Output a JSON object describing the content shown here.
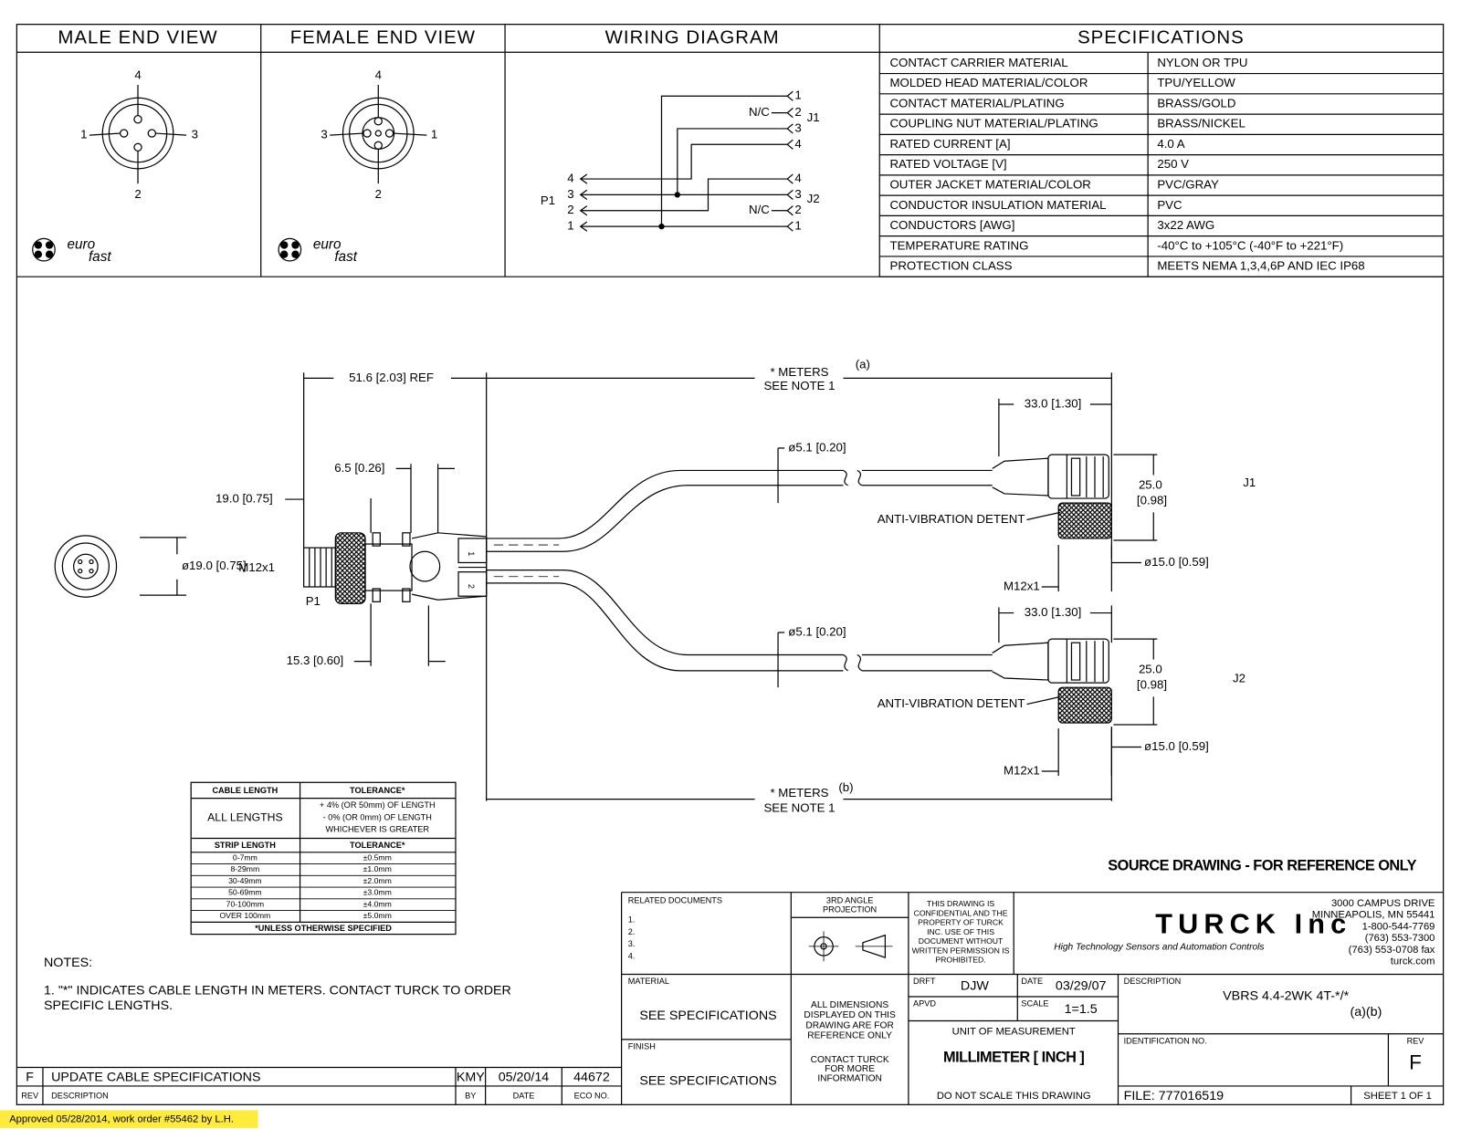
{
  "header": {
    "male_end_view": "MALE END VIEW",
    "female_end_view": "FEMALE END VIEW",
    "wiring_diagram": "WIRING DIAGRAM",
    "specifications": "SPECIFICATIONS"
  },
  "male_view": {
    "pins": [
      "4",
      "1",
      "3",
      "2"
    ],
    "logo": [
      "euro",
      "fast"
    ]
  },
  "female_view": {
    "pins": [
      "4",
      "3",
      "1",
      "2"
    ],
    "logo": [
      "euro",
      "fast"
    ]
  },
  "wiring": {
    "j1_pins": [
      "1",
      "2",
      "3",
      "4"
    ],
    "j1_nc": "N/C",
    "j1": "J1",
    "p1_pins": [
      "4",
      "3",
      "2",
      "1"
    ],
    "p1": "P1",
    "j2_pins": [
      "4",
      "3",
      "2",
      "1"
    ],
    "j2_nc": "N/C",
    "j2": "J2"
  },
  "specifications": [
    [
      "CONTACT CARRIER MATERIAL",
      "NYLON OR TPU"
    ],
    [
      "MOLDED HEAD MATERIAL/COLOR",
      "TPU/YELLOW"
    ],
    [
      "CONTACT MATERIAL/PLATING",
      "BRASS/GOLD"
    ],
    [
      "COUPLING NUT MATERIAL/PLATING",
      "BRASS/NICKEL"
    ],
    [
      "RATED CURRENT [A]",
      "4.0 A"
    ],
    [
      "RATED VOLTAGE [V]",
      "250 V"
    ],
    [
      "OUTER JACKET MATERIAL/COLOR",
      "PVC/GRAY"
    ],
    [
      "CONDUCTOR INSULATION MATERIAL",
      "PVC"
    ],
    [
      "CONDUCTORS [AWG]",
      "3x22 AWG"
    ],
    [
      "TEMPERATURE RATING",
      "-40°C to +105°C (-40°F to +221°F)"
    ],
    [
      "PROTECTION CLASS",
      "MEETS NEMA 1,3,4,6P AND IEC IP68"
    ]
  ],
  "drawing": {
    "labels": [
      "51.6 [2.03] REF",
      "* METERS",
      "(a)",
      "SEE NOTE 1",
      "33.0 [1.30]",
      "6.5 [0.26]",
      "ø5.1 [0.20]",
      "19.0 [0.75]",
      "25.0",
      "[0.98]",
      "J1",
      "ANTI-VIBRATION DETENT",
      "ø19.0 [0.75]",
      "M12x1",
      "ø15.0 [0.59]",
      "P1",
      "M12x1",
      "33.0 [1.30]",
      "ø5.1 [0.20]",
      "15.3 [0.60]",
      "25.0",
      "[0.98]",
      "J2",
      "ANTI-VIBRATION DETENT",
      "ø15.0 [0.59]",
      "M12x1",
      "* METERS",
      "(b)",
      "SEE NOTE 1",
      "1",
      "2"
    ],
    "source_note": "SOURCE DRAWING - FOR REFERENCE ONLY"
  },
  "tolerance_table": {
    "header": [
      "CABLE LENGTH",
      "TOLERANCE*"
    ],
    "all_lengths": "ALL LENGTHS",
    "all_tolerance": [
      "+ 4% (OR 50mm) OF LENGTH",
      "- 0% (OR 0mm) OF LENGTH",
      "WHICHEVER IS GREATER"
    ],
    "strip_header": [
      "STRIP LENGTH",
      "TOLERANCE*"
    ],
    "rows": [
      [
        "0-7mm",
        "±0.5mm"
      ],
      [
        "8-29mm",
        "±1.0mm"
      ],
      [
        "30-49mm",
        "±2.0mm"
      ],
      [
        "50-69mm",
        "±3.0mm"
      ],
      [
        "70-100mm",
        "±4.0mm"
      ],
      [
        "OVER 100mm",
        "±5.0mm"
      ]
    ],
    "footer": "*UNLESS OTHERWISE SPECIFIED"
  },
  "notes": {
    "title": "NOTES:",
    "lines": [
      "1. \"*\" INDICATES CABLE LENGTH IN METERS. CONTACT TURCK TO ORDER",
      "SPECIFIC LENGTHS."
    ]
  },
  "revisions": {
    "header": [
      "REV",
      "DESCRIPTION",
      "BY",
      "DATE",
      "ECO NO."
    ],
    "rows": [
      [
        "F",
        "UPDATE CABLE SPECIFICATIONS",
        "KMY",
        "05/20/14",
        "44672"
      ]
    ]
  },
  "title_block": {
    "related_documents": "RELATED DOCUMENTS",
    "related_items": [
      "1.",
      "2.",
      "3.",
      "4."
    ],
    "projection": [
      "3RD ANGLE",
      "PROJECTION"
    ],
    "confidential": [
      "THIS DRAWING IS",
      "CONFIDENTIAL AND THE",
      "PROPERTY OF TURCK",
      "INC. USE OF THIS",
      "DOCUMENT WITHOUT",
      "WRITTEN PERMISSION IS",
      "PROHIBITED."
    ],
    "company": "TURCK Inc",
    "tagline": "High Technology Sensors and Automation Controls",
    "address": [
      "3000 CAMPUS DRIVE",
      "MINNEAPOLIS, MN 55441",
      "1-800-544-7769",
      "(763) 553-7300",
      "(763) 553-0708 fax",
      "turck.com"
    ],
    "material_label": "MATERIAL",
    "material": "SEE SPECIFICATIONS",
    "finish_label": "FINISH",
    "finish": "SEE SPECIFICATIONS",
    "dimensions_note": [
      "ALL DIMENSIONS",
      "DISPLAYED ON THIS",
      "DRAWING ARE FOR",
      "REFERENCE ONLY"
    ],
    "contact": [
      "CONTACT TURCK",
      "FOR MORE",
      "INFORMATION"
    ],
    "drft_label": "DRFT",
    "drft": "DJW",
    "date_label": "DATE",
    "date": "03/29/07",
    "apvd_label": "APVD",
    "scale_label": "SCALE",
    "scale": "1=1.5",
    "unit_label": "UNIT OF MEASUREMENT",
    "unit": "MILLIMETER [ INCH ]",
    "do_not_scale": "DO NOT SCALE THIS DRAWING",
    "description_label": "DESCRIPTION",
    "description": "VBRS 4.4-2WK 4T-*/*",
    "description_sub": "(a)(b)",
    "identification_label": "IDENTIFICATION NO.",
    "rev_label": "REV",
    "rev": "F",
    "file": "FILE: 777016519",
    "sheet": "SHEET 1 OF 1"
  },
  "approval": "Approved 05/28/2014, work order #55462 by L.H."
}
